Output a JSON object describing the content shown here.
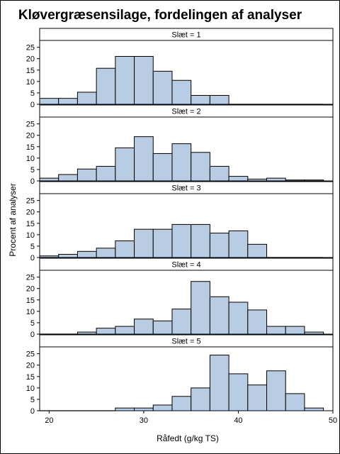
{
  "chart_data": {
    "type": "bar",
    "title": "Kløvergræsensilage, fordelingen af analyser",
    "xlabel": "Råfedt (g/kg TS)",
    "ylabel": "Procent af analyser",
    "xlim": [
      19,
      50
    ],
    "ylim": [
      0,
      28
    ],
    "x_ticks": [
      20,
      30,
      40,
      50
    ],
    "y_ticks": [
      0,
      5,
      10,
      15,
      20,
      25
    ],
    "bin_width": 2,
    "bin_starts": [
      19,
      21,
      23,
      25,
      27,
      29,
      31,
      33,
      35,
      37,
      39,
      41,
      43,
      45,
      47
    ],
    "bar_color": "#b8cce4",
    "series": [
      {
        "name": "Slæt = 1",
        "values": [
          2.6,
          2.6,
          5.3,
          15.8,
          21,
          21,
          14.5,
          10.5,
          3.9,
          3.9,
          0,
          0,
          0,
          0,
          0
        ]
      },
      {
        "name": "Slæt = 2",
        "values": [
          1.2,
          2.8,
          5.2,
          6.4,
          14.5,
          19.4,
          12,
          16.3,
          12.5,
          6.4,
          2,
          0.8,
          1.2,
          0.4,
          0.4
        ]
      },
      {
        "name": "Slæt = 3",
        "values": [
          0.7,
          1.4,
          2.7,
          4.1,
          7.3,
          12.4,
          12.4,
          14.5,
          14.5,
          10.7,
          11.7,
          5.8,
          0,
          0,
          0
        ]
      },
      {
        "name": "Slæt = 4",
        "values": [
          0,
          0,
          0.9,
          2.6,
          3.4,
          6.6,
          5.8,
          11,
          23.1,
          16.4,
          14,
          10.6,
          3.4,
          3.4,
          0.9
        ]
      },
      {
        "name": "Slæt = 5",
        "values": [
          0,
          0,
          0,
          0,
          1.2,
          1.2,
          2.5,
          6.3,
          10,
          24.4,
          16.2,
          11.3,
          17.5,
          7.5,
          1.2
        ]
      }
    ]
  }
}
